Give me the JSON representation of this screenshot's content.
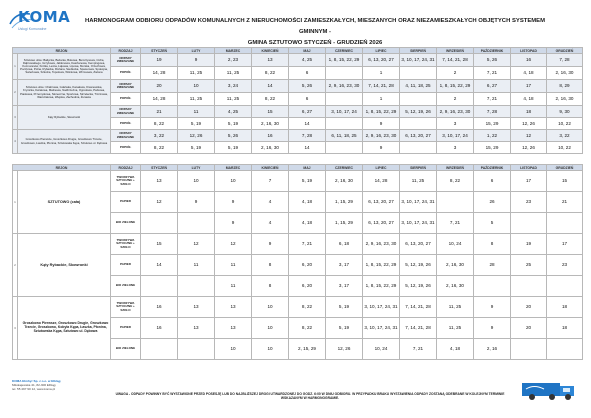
{
  "logo": {
    "name": "KOMA",
    "tagline": "Usługi Komunalne"
  },
  "title_line1": "HARMONOGRAM ODBIORU ODPADÓW KOMUNALNYCH Z NIERUCHOMOŚCI ZAMIESZKAŁYCH, MIESZANYCH ORAZ NIEZAMIESZKAŁYCH OBJĘTYCH SYSTEMEM GMINNYM -",
  "title_line2": "GMINA SZTUTOWO  STYCZEŃ - GRUDZIEŃ 2026",
  "headers": [
    "REJON",
    "RODZAJ",
    "STYCZEŃ",
    "LUTY",
    "MARZEC",
    "KWIECIEŃ",
    "MAJ",
    "CZERWIEC",
    "LIPIEC",
    "SIERPIEŃ",
    "WRZESIEŃ",
    "PAŹDZIERNIK",
    "LISTOPAD",
    "GRUDZIEŃ"
  ],
  "table1": [
    {
      "num": "1",
      "street": "Sztutowo ulice: Bałtycka, Bażanta, Bukowa, Bursztynowa, Cicha, Dąbrowskiego, Grzybowa, Jabłonowa, Kasztanowa, Kempingowa, Kormoranów, Krótka, Leśna, Łąkowa, Lipowa, Morska, Orzechowa, Pocztowa, Polna, Rybacka, Różana, Siedlecka, Spacerowa, Spokojna, Świerkowa, Szkolna, Topolowa, Wiśniowa, Wrzosowa, Zielona",
      "rows": [
        {
          "type": "ODPADY ZMIESZANE",
          "vals": [
            "19",
            "9",
            "2, 23",
            "13",
            "4, 25",
            "1, 8, 15, 22, 29",
            "6, 13, 20, 27",
            "3, 10, 17, 24, 31",
            "7, 14, 21, 28",
            "5, 26",
            "16",
            "7, 28"
          ]
        },
        {
          "type": "POPIÓŁ",
          "vals": [
            "14, 28",
            "11, 25",
            "11, 25",
            "8, 22",
            "6",
            "",
            "1",
            "",
            "2",
            "7, 21",
            "4, 18",
            "2, 16, 30"
          ]
        }
      ]
    },
    {
      "num": "2",
      "street": "Sztutowo ulice: Chabrowa, Gdańska, Kanałowa, Krasnowska, Krynicka, Kwiatowa, Malinowa, Nadbrzeżna, Ogrodowa, Parkowa, Piaskowa, Przemysłowa, Słoneczna, Sportowa, Strzelecka, Trzcinowa, Warsztatowa, Wiejska, Zachodnia, Żurawia",
      "rows": [
        {
          "type": "ODPADY ZMIESZANE",
          "vals": [
            "20",
            "10",
            "3, 24",
            "14",
            "5, 26",
            "2, 9, 16, 23, 30",
            "7, 14, 21, 28",
            "4, 11, 18, 25",
            "1, 8, 15, 22, 29",
            "6, 27",
            "17",
            "8, 29"
          ]
        },
        {
          "type": "POPIÓŁ",
          "vals": [
            "14, 28",
            "11, 25",
            "11, 25",
            "8, 22",
            "6",
            "",
            "1",
            "",
            "2",
            "7, 21",
            "4, 18",
            "2, 16, 30"
          ]
        }
      ]
    },
    {
      "num": "3",
      "street": "Kąty Rybackie, Skowronki",
      "rows": [
        {
          "type": "ODPADY ZMIESZANE",
          "vals": [
            "21",
            "11",
            "4, 25",
            "15",
            "6, 27",
            "3, 10, 17, 24",
            "1, 8, 15, 22, 29",
            "5, 12, 19, 26",
            "2, 9, 16, 23, 30",
            "7, 28",
            "18",
            "9, 30"
          ]
        },
        {
          "type": "POPIÓŁ",
          "vals": [
            "8, 22",
            "5, 19",
            "5, 19",
            "2, 16, 30",
            "14",
            "",
            "9",
            "",
            "3",
            "15, 29",
            "12, 26",
            "10, 22"
          ]
        }
      ]
    },
    {
      "num": "4",
      "street": "Groszkowo Pierwsze, Groszkowo Drugie, Groszkowo Trzecie, Groszkowo, Łaszka, Płonina, Sztutowska Kępa, Sztutowo ul. Dębowa",
      "rows": [
        {
          "type": "ODPADY ZMIESZANE",
          "vals": [
            "3, 22",
            "12, 26",
            "5, 26",
            "16",
            "7, 28",
            "6, 11, 18, 25",
            "2, 9, 16, 23, 30",
            "6, 13, 20, 27",
            "3, 10, 17, 24",
            "1, 22",
            "12",
            "3, 22"
          ]
        },
        {
          "type": "POPIÓŁ",
          "vals": [
            "8, 22",
            "5, 19",
            "5, 19",
            "2, 16, 30",
            "14",
            "",
            "9",
            "",
            "3",
            "15, 29",
            "12, 26",
            "10, 22"
          ]
        }
      ]
    }
  ],
  "table2": [
    {
      "num": "1",
      "location": "SZTUTOWO (cała)",
      "rows": [
        {
          "type": "TWORZYWA SZTUCZNE + SZKŁO",
          "vals": [
            "13",
            "10",
            "10",
            "7",
            "5, 19",
            "2, 16, 30",
            "14, 28",
            "11, 25",
            "8, 22",
            "6",
            "17",
            "15"
          ]
        },
        {
          "type": "PAPIER",
          "vals": [
            "12",
            "9",
            "9",
            "4",
            "4, 18",
            "1, 15, 29",
            "6, 13, 20, 27",
            "3, 10, 17, 24, 31",
            "",
            "26",
            "23",
            "21"
          ]
        },
        {
          "type": "BIO ZIELONE",
          "vals": [
            "",
            "",
            "9",
            "4",
            "4, 18",
            "1, 15, 29",
            "6, 13, 20, 27",
            "3, 10, 17, 24, 31",
            "7, 21",
            "5",
            "",
            ""
          ]
        }
      ]
    },
    {
      "num": "2",
      "location": "Kąty Rybackie, Skowronki",
      "rows": [
        {
          "type": "TWORZYWA SZTUCZNE + SZKŁO",
          "vals": [
            "15",
            "12",
            "12",
            "9",
            "7, 21",
            "6, 18",
            "2, 9, 16, 23, 30",
            "6, 13, 20, 27",
            "10, 24",
            "8",
            "19",
            "17"
          ]
        },
        {
          "type": "PAPIER",
          "vals": [
            "14",
            "11",
            "11",
            "8",
            "6, 20",
            "3, 17",
            "1, 8, 15, 22, 29",
            "5, 12, 19, 26",
            "2, 16, 30",
            "28",
            "25",
            "23"
          ]
        },
        {
          "type": "BIO ZIELONE",
          "vals": [
            "",
            "",
            "11",
            "8",
            "6, 20",
            "3, 17",
            "1, 8, 15, 22, 29",
            "5, 12, 19, 26",
            "2, 16, 30",
            "",
            "",
            ""
          ]
        }
      ]
    },
    {
      "num": "3",
      "location": "Groszkowo Pierwsze, Groszkowo Drugie, Groszkowo Trzecie, Groszkowo, Kobyla Kępa, Łaszka, Płonina, Sztutowska Kępa, Sztutowo ul. Dębowa",
      "rows": [
        {
          "type": "TWORZYWA SZTUCZNE + SZKŁO",
          "vals": [
            "16",
            "13",
            "13",
            "10",
            "8, 22",
            "5, 19",
            "3, 10, 17, 24, 31",
            "7, 14, 21, 28",
            "11, 25",
            "9",
            "20",
            "18"
          ]
        },
        {
          "type": "PAPIER",
          "vals": [
            "16",
            "13",
            "13",
            "10",
            "8, 22",
            "5, 19",
            "3, 10, 17, 24, 31",
            "7, 14, 21, 28",
            "11, 25",
            "9",
            "20",
            "18"
          ]
        },
        {
          "type": "BIO ZIELONE",
          "vals": [
            "",
            "",
            "10",
            "10",
            "2, 15, 29",
            "12, 26",
            "10, 24",
            "7, 21",
            "4, 18",
            "2, 16",
            "",
            ""
          ]
        }
      ]
    }
  ],
  "footer": {
    "company": "KOMA Elmhyr Sp. z o.o. w Elbląg",
    "address": "Mikołajewska 41, 82-300 Elbląg",
    "phone": "tel. 55 497 90 12, www.koma.pl",
    "note": "UWAGA - ODPADY POWINNY BYĆ WYSTAWIONE PRZED POSESJĘ LUB DO NAJBLIŻSZEJ DROGI UTWARDZONEJ DO GODZ. 6:00 W DNIU ODBIORU. W PRZYPADKU BRAKU WYSTAWIENIA ODPADY ZOSTANĄ ODEBRANE W KOLEJNYM TERMINIE WSKAZANYM W HARMONOGRAMIE."
  },
  "colors": {
    "brand": "#1f74c4",
    "header_bg": "#cfd9e8",
    "row_shade": "#eaeef4"
  }
}
